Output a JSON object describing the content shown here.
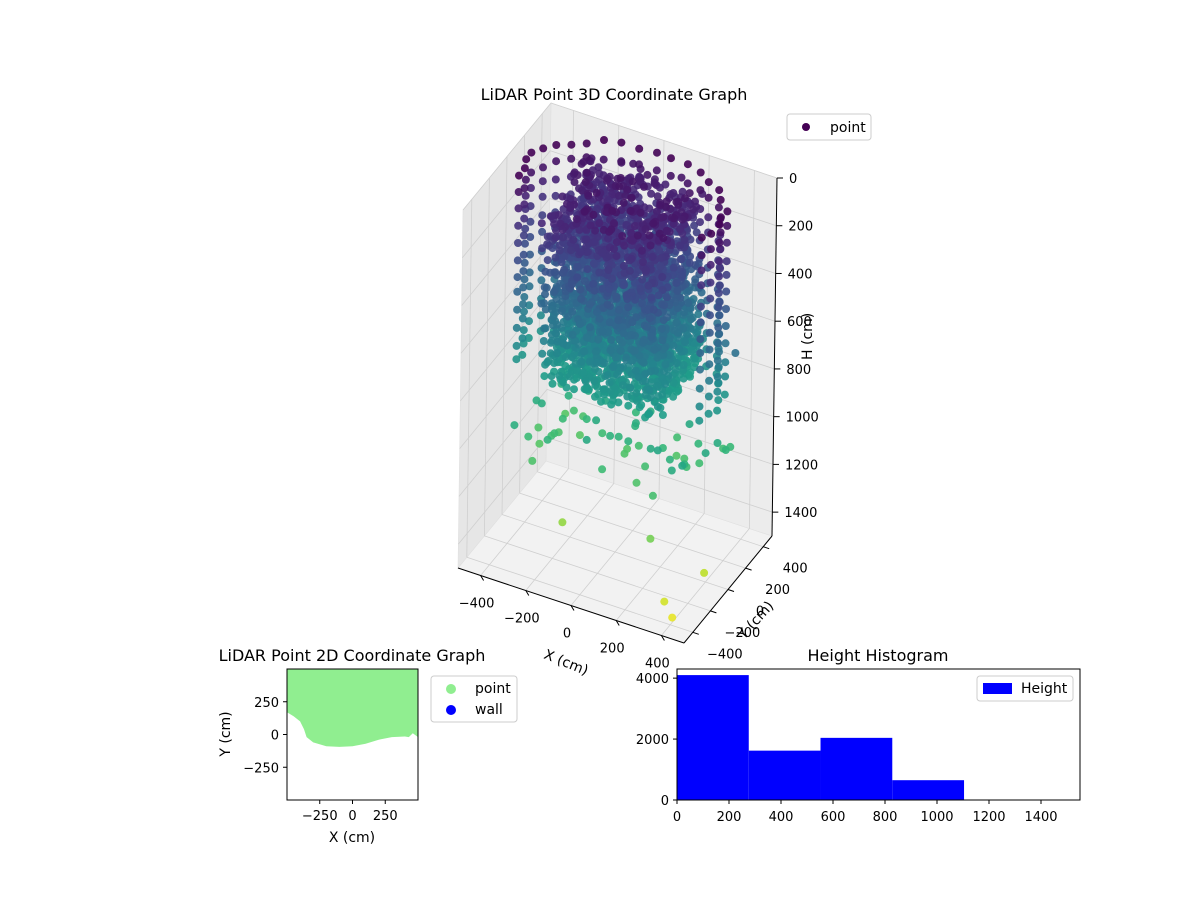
{
  "chart_data": [
    {
      "type": "scatter3d",
      "title": "LiDAR Point 3D Coordinate Graph",
      "xlabel": "X (cm)",
      "ylabel": "Y (cm)",
      "zlabel": "H (cm)",
      "x_ticks": [
        -400,
        -200,
        0,
        200,
        400
      ],
      "y_ticks": [
        -400,
        -200,
        0,
        200,
        400
      ],
      "z_ticks": [
        0,
        200,
        400,
        600,
        800,
        1000,
        1200,
        1400
      ],
      "z_tick_labels": [
        "0",
        "200",
        "400",
        "600",
        "800",
        "1000",
        "1200",
        "1400"
      ],
      "xlim": [
        -500,
        500
      ],
      "ylim": [
        -500,
        500
      ],
      "zlim": [
        0,
        1500
      ],
      "zinverted": true,
      "legend": [
        {
          "label": "point",
          "color": "#440154"
        }
      ],
      "legend_position": "top-right",
      "colormap": "viridis",
      "colorscale_range": [
        0,
        1500
      ],
      "grid": true,
      "description_series": "dense point cloud; heights 0-900 for most points with a few outliers up to 1500"
    },
    {
      "type": "scatter",
      "title": "LiDAR Point 2D Coordinate Graph",
      "xlabel": "X (cm)",
      "ylabel": "Y (cm)",
      "x_ticks": [
        -250,
        0,
        250
      ],
      "y_ticks": [
        250,
        0,
        -250
      ],
      "xlim": [
        -500,
        500
      ],
      "ylim": [
        -500,
        500
      ],
      "legend": [
        {
          "label": "point",
          "color": "#90ee90"
        },
        {
          "label": "wall",
          "color": "#0000ff"
        }
      ],
      "legend_position": "outside-right",
      "region_boundary_y": [
        [
          -500,
          170
        ],
        [
          -450,
          140
        ],
        [
          -400,
          100
        ],
        [
          -370,
          40
        ],
        [
          -350,
          -20
        ],
        [
          -300,
          -60
        ],
        [
          -200,
          -90
        ],
        [
          -100,
          -95
        ],
        [
          0,
          -90
        ],
        [
          100,
          -70
        ],
        [
          200,
          -40
        ],
        [
          300,
          -20
        ],
        [
          400,
          -15
        ],
        [
          430,
          -20
        ],
        [
          460,
          10
        ],
        [
          500,
          -20
        ]
      ]
    },
    {
      "type": "bar",
      "title": "Height Histogram",
      "legend": [
        {
          "label": "Height",
          "color": "#0000ff"
        }
      ],
      "legend_position": "top-right",
      "x_ticks": [
        0,
        200,
        400,
        600,
        800,
        1000,
        1200,
        1400
      ],
      "y_ticks": [
        0,
        2000,
        4000
      ],
      "xlim": [
        0,
        1550
      ],
      "ylim": [
        0,
        4300
      ],
      "bins": [
        {
          "start": 0,
          "end": 276,
          "count": 4100
        },
        {
          "start": 276,
          "end": 552,
          "count": 1620
        },
        {
          "start": 552,
          "end": 828,
          "count": 2040
        },
        {
          "start": 828,
          "end": 1104,
          "count": 650
        },
        {
          "start": 1104,
          "end": 1380,
          "count": 0
        },
        {
          "start": 1380,
          "end": 1550,
          "count": 2
        }
      ]
    }
  ]
}
